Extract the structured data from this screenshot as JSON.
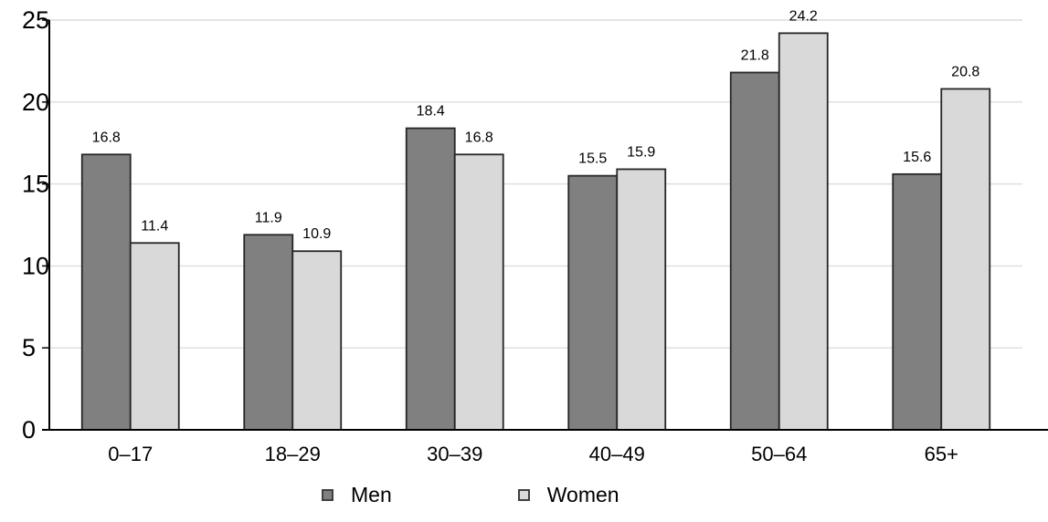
{
  "chart_data": {
    "type": "bar",
    "title": "",
    "xlabel": "",
    "ylabel": "",
    "categories": [
      "0–17",
      "18–29",
      "30–39",
      "40–49",
      "50–64",
      "65+"
    ],
    "series": [
      {
        "name": "Men",
        "color": "#808080",
        "values": [
          16.8,
          11.9,
          18.4,
          15.5,
          21.8,
          15.6
        ]
      },
      {
        "name": "Women",
        "color": "#d9d9d9",
        "values": [
          11.4,
          10.9,
          16.8,
          15.9,
          24.2,
          20.8
        ]
      }
    ],
    "ylim": [
      0,
      25
    ],
    "yticks": [
      0,
      5,
      10,
      15,
      20,
      25
    ],
    "grid": true,
    "gridline_color": "#dcdcdc",
    "axis_color": "#000000",
    "bar_border_color": "#262626",
    "value_labels": true,
    "legend_position": "bottom"
  }
}
